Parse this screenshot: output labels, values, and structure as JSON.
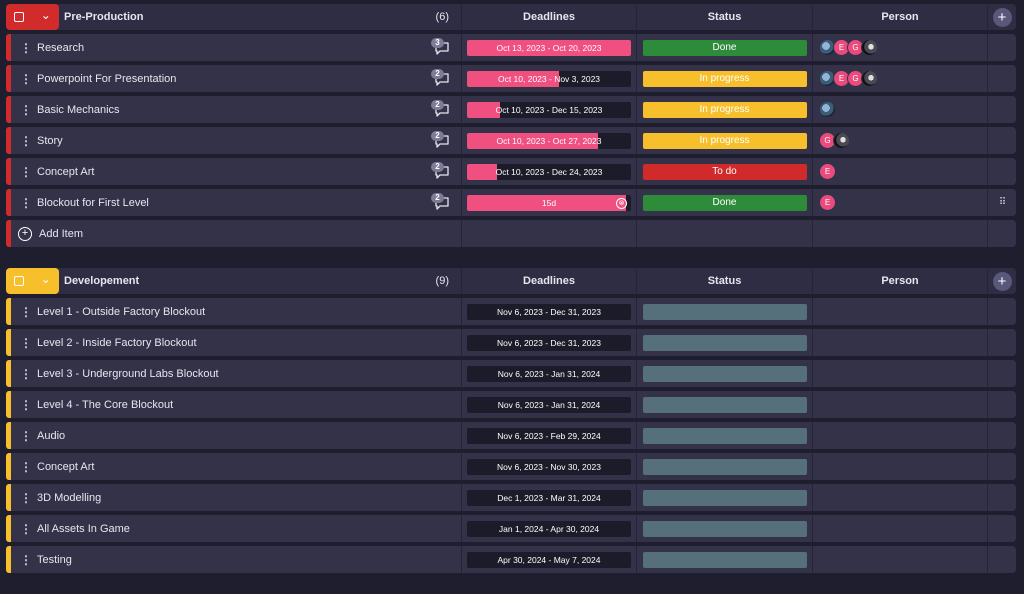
{
  "colors": {
    "red": "#d22b2b",
    "yellow": "#f6bf2b",
    "pink": "#f0507f",
    "done": "#2e8b3a",
    "progress": "#f6bf2b",
    "todo": "#d12a2a",
    "empty": "#55707a"
  },
  "columns": {
    "deadlines": "Deadlines",
    "status": "Status",
    "person": "Person"
  },
  "groups": [
    {
      "title": "Pre-Production",
      "count": "(6)",
      "color": "#d22b2b",
      "items": [
        {
          "name": "Research",
          "comments": "3",
          "deadline": "Oct 13, 2023 - Oct 20, 2023",
          "progress": 1.0,
          "status": "Done",
          "status_color": "#2e8b3a",
          "people": [
            "photo",
            "E",
            "G",
            "photo2"
          ]
        },
        {
          "name": "Powerpoint For Presentation",
          "comments": "2",
          "deadline": "Oct 10, 2023 - Nov 3, 2023",
          "progress": 0.56,
          "status": "In progress",
          "status_color": "#f6bf2b",
          "people": [
            "photo",
            "E",
            "G",
            "photo2"
          ]
        },
        {
          "name": "Basic Mechanics",
          "comments": "2",
          "deadline": "Oct 10, 2023 - Dec 15, 2023",
          "progress": 0.2,
          "status": "In progress",
          "status_color": "#f6bf2b",
          "people": [
            "photo"
          ]
        },
        {
          "name": "Story",
          "comments": "2",
          "deadline": "Oct 10, 2023 - Oct 27, 2023",
          "progress": 0.8,
          "status": "In progress",
          "status_color": "#f6bf2b",
          "people": [
            "G",
            "photo2"
          ]
        },
        {
          "name": "Concept Art",
          "comments": "2",
          "deadline": "Oct 10, 2023 - Dec 24, 2023",
          "progress": 0.18,
          "status": "To do",
          "status_color": "#d12a2a",
          "people": [
            "E"
          ]
        },
        {
          "name": "Blockout for First Level",
          "comments": "2",
          "deadline": "15d",
          "progress": 0.97,
          "status": "Done",
          "status_color": "#2e8b3a",
          "people": [
            "E"
          ],
          "clear": "⊗"
        }
      ],
      "add_label": "Add Item"
    },
    {
      "title": "Developement",
      "count": "(9)",
      "color": "#f6bf2b",
      "items": [
        {
          "name": "Level 1 - Outside Factory Blockout",
          "deadline": "Nov 6, 2023 - Dec 31, 2023",
          "progress": 0,
          "status": "",
          "status_color": "#55707a",
          "people": []
        },
        {
          "name": "Level 2 - Inside Factory Blockout",
          "deadline": "Nov 6, 2023 - Dec 31, 2023",
          "progress": 0,
          "status": "",
          "status_color": "#55707a",
          "people": []
        },
        {
          "name": "Level 3 - Underground Labs Blockout",
          "deadline": "Nov 6, 2023 - Jan 31, 2024",
          "progress": 0,
          "status": "",
          "status_color": "#55707a",
          "people": []
        },
        {
          "name": "Level 4 - The Core Blockout",
          "deadline": "Nov 6, 2023 - Jan 31, 2024",
          "progress": 0,
          "status": "",
          "status_color": "#55707a",
          "people": []
        },
        {
          "name": "Audio",
          "deadline": "Nov 6, 2023 - Feb 29, 2024",
          "progress": 0,
          "status": "",
          "status_color": "#55707a",
          "people": []
        },
        {
          "name": "Concept Art",
          "deadline": "Nov 6, 2023 - Nov 30, 2023",
          "progress": 0,
          "status": "",
          "status_color": "#55707a",
          "people": []
        },
        {
          "name": "3D Modelling",
          "deadline": "Dec 1, 2023 - Mar 31, 2024",
          "progress": 0,
          "status": "",
          "status_color": "#55707a",
          "people": []
        },
        {
          "name": "All Assets In Game",
          "deadline": "Jan 1, 2024 - Apr 30, 2024",
          "progress": 0,
          "status": "",
          "status_color": "#55707a",
          "people": []
        },
        {
          "name": "Testing",
          "deadline": "Apr 30, 2024 - May 7, 2024",
          "progress": 0,
          "status": "",
          "status_color": "#55707a",
          "people": []
        }
      ]
    }
  ]
}
